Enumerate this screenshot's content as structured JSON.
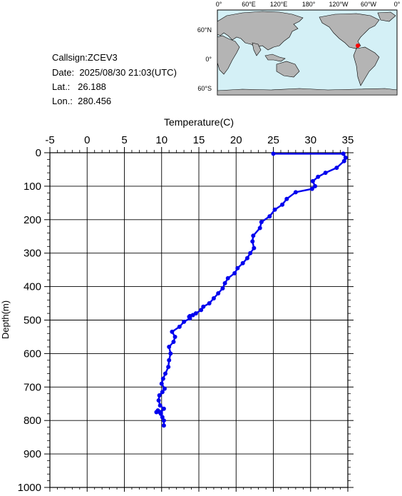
{
  "info": {
    "callsign_label": "Callsign:",
    "callsign": "ZCEV3",
    "date_label": "Date:",
    "date": "2025/08/30 21:03(UTC)",
    "lat_label": "Lat.:",
    "lat": "26.188",
    "lon_label": "Lon.:",
    "lon": "280.456"
  },
  "map": {
    "top_ticks": [
      "0°",
      "60°E",
      "120°E",
      "180°",
      "120°W",
      "60°W",
      "0°"
    ],
    "side_ticks": [
      "60°N",
      "0°",
      "60°S"
    ],
    "colors": {
      "ocean": "#d4f0f6",
      "land": "#b4b4b4",
      "marker": "#ff0000"
    }
  },
  "chart_data": {
    "type": "line",
    "xlabel": "Temperature(C)",
    "ylabel": "Depth(m)",
    "xlim": [
      -5,
      35
    ],
    "ylim": [
      1000,
      0
    ],
    "x_ticks": [
      "-5",
      "0",
      "5",
      "10",
      "15",
      "20",
      "25",
      "30",
      "35"
    ],
    "y_ticks": [
      "0",
      "100",
      "200",
      "300",
      "400",
      "500",
      "600",
      "700",
      "800",
      "900",
      "1000"
    ],
    "grid": true,
    "series": [
      {
        "color": "#0000ee",
        "temperature": [
          25.0,
          34.4,
          34.7,
          34.5,
          33.5,
          32.0,
          31.0,
          30.3,
          30.6,
          30.2,
          28.0,
          26.8,
          26.2,
          25.2,
          24.5,
          23.4,
          23.2,
          22.3,
          22.2,
          22.4,
          21.9,
          21.5,
          20.9,
          20.2,
          19.8,
          18.9,
          18.5,
          18.2,
          17.6,
          17.0,
          16.4,
          15.6,
          15.3,
          14.6,
          14.2,
          13.8,
          13.7,
          13.8,
          13.0,
          12.4,
          11.4,
          11.8,
          11.6,
          11.0,
          11.2,
          11.0,
          10.9,
          10.5,
          10.2,
          10.0,
          10.4,
          10.1,
          9.7,
          9.6,
          9.8,
          10.3,
          9.9,
          9.5,
          9.3,
          9.9,
          10.1,
          10.3,
          10.3
        ],
        "depth": [
          3,
          3,
          15,
          25,
          45,
          60,
          72,
          85,
          100,
          108,
          118,
          138,
          155,
          170,
          190,
          207,
          225,
          248,
          265,
          285,
          300,
          315,
          330,
          345,
          360,
          375,
          390,
          405,
          420,
          435,
          450,
          460,
          470,
          480,
          485,
          488,
          490,
          495,
          505,
          520,
          535,
          550,
          565,
          580,
          600,
          620,
          640,
          660,
          675,
          690,
          705,
          715,
          725,
          740,
          755,
          765,
          775,
          770,
          775,
          780,
          790,
          800,
          815
        ]
      }
    ]
  }
}
